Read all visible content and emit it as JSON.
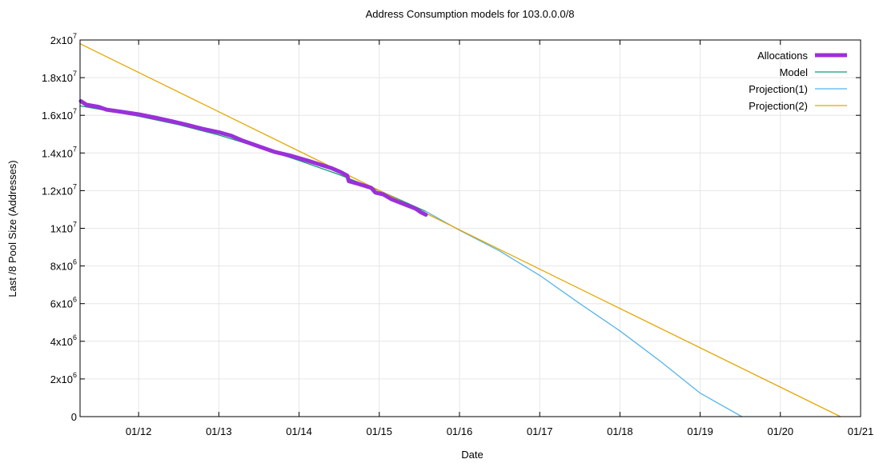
{
  "chart_data": {
    "type": "line",
    "title": "Address Consumption models for 103.0.0.0/8",
    "xlabel": "Date",
    "ylabel": "Last /8 Pool Size (Addresses)",
    "x_ticks": [
      "01/12",
      "01/13",
      "01/14",
      "01/15",
      "01/16",
      "01/17",
      "01/18",
      "01/19",
      "01/20",
      "01/21"
    ],
    "x_tick_years": [
      2012,
      2013,
      2014,
      2015,
      2016,
      2017,
      2018,
      2019,
      2020,
      2021
    ],
    "xlim": [
      2011.27,
      2021.0
    ],
    "y_ticks": [
      {
        "value": 0,
        "mantissa": "0",
        "exp": ""
      },
      {
        "value": 2000000,
        "mantissa": "2x10",
        "exp": "6"
      },
      {
        "value": 4000000,
        "mantissa": "4x10",
        "exp": "6"
      },
      {
        "value": 6000000,
        "mantissa": "6x10",
        "exp": "6"
      },
      {
        "value": 8000000,
        "mantissa": "8x10",
        "exp": "6"
      },
      {
        "value": 10000000,
        "mantissa": "1x10",
        "exp": "7"
      },
      {
        "value": 12000000,
        "mantissa": "1.2x10",
        "exp": "7"
      },
      {
        "value": 14000000,
        "mantissa": "1.4x10",
        "exp": "7"
      },
      {
        "value": 16000000,
        "mantissa": "1.6x10",
        "exp": "7"
      },
      {
        "value": 18000000,
        "mantissa": "1.8x10",
        "exp": "7"
      },
      {
        "value": 20000000,
        "mantissa": "2x10",
        "exp": "7"
      }
    ],
    "ylim": [
      0,
      20000000
    ],
    "grid": true,
    "legend_position": "top-right",
    "series": [
      {
        "name": "Allocations",
        "color": "#9b30d9",
        "width": 5,
        "points": [
          [
            2011.28,
            16750000
          ],
          [
            2011.35,
            16560000
          ],
          [
            2011.5,
            16450000
          ],
          [
            2011.6,
            16300000
          ],
          [
            2011.8,
            16180000
          ],
          [
            2012.0,
            16050000
          ],
          [
            2012.2,
            15880000
          ],
          [
            2012.4,
            15700000
          ],
          [
            2012.6,
            15500000
          ],
          [
            2012.8,
            15280000
          ],
          [
            2013.0,
            15100000
          ],
          [
            2013.15,
            14920000
          ],
          [
            2013.3,
            14650000
          ],
          [
            2013.5,
            14350000
          ],
          [
            2013.7,
            14050000
          ],
          [
            2013.9,
            13850000
          ],
          [
            2014.1,
            13600000
          ],
          [
            2014.25,
            13400000
          ],
          [
            2014.4,
            13200000
          ],
          [
            2014.52,
            12980000
          ],
          [
            2014.6,
            12800000
          ],
          [
            2014.62,
            12500000
          ],
          [
            2014.75,
            12350000
          ],
          [
            2014.9,
            12150000
          ],
          [
            2014.95,
            11900000
          ],
          [
            2015.05,
            11800000
          ],
          [
            2015.15,
            11550000
          ],
          [
            2015.3,
            11300000
          ],
          [
            2015.45,
            11050000
          ],
          [
            2015.52,
            10850000
          ],
          [
            2015.58,
            10720000
          ]
        ]
      },
      {
        "name": "Model",
        "color": "#0f9e73",
        "width": 1.3,
        "points": [
          [
            2011.27,
            16500000
          ],
          [
            2012.0,
            15950000
          ],
          [
            2012.5,
            15500000
          ],
          [
            2013.0,
            14950000
          ],
          [
            2013.5,
            14300000
          ],
          [
            2014.0,
            13600000
          ],
          [
            2014.5,
            12850000
          ],
          [
            2015.0,
            12000000
          ],
          [
            2015.58,
            10900000
          ]
        ]
      },
      {
        "name": "Projection(1)",
        "color": "#56b4e9",
        "width": 1.3,
        "points": [
          [
            2015.58,
            10900000
          ],
          [
            2016.0,
            9900000
          ],
          [
            2016.5,
            8800000
          ],
          [
            2017.0,
            7500000
          ],
          [
            2017.5,
            6000000
          ],
          [
            2018.0,
            4550000
          ],
          [
            2018.5,
            2950000
          ],
          [
            2019.0,
            1250000
          ],
          [
            2019.52,
            0
          ]
        ]
      },
      {
        "name": "Projection(2)",
        "color": "#e6a600",
        "width": 1.3,
        "points": [
          [
            2011.27,
            19800000
          ],
          [
            2020.75,
            0
          ]
        ]
      }
    ]
  }
}
